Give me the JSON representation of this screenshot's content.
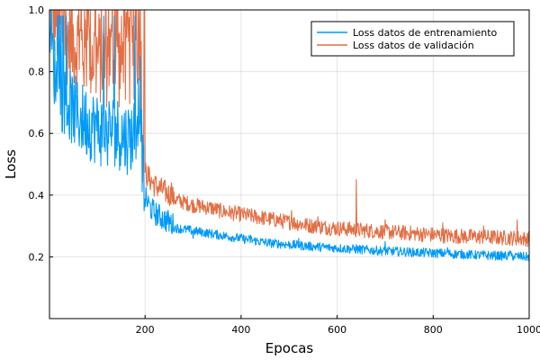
{
  "chart_data": {
    "type": "line",
    "title": "",
    "xlabel": "Epocas",
    "ylabel": "Loss",
    "xlim": [
      1,
      1000
    ],
    "ylim": [
      0.0,
      1.0
    ],
    "x_ticks": [
      200,
      400,
      600,
      800,
      1000
    ],
    "x_tick_labels": [
      "200",
      "400",
      "600",
      "800",
      "1000"
    ],
    "y_ticks": [
      0.2,
      0.4,
      0.6,
      0.8,
      1.0
    ],
    "y_tick_labels": [
      "0.2",
      "0.4",
      "0.6",
      "0.8",
      "1.0"
    ],
    "grid": true,
    "legend_position": "top-right",
    "series": [
      {
        "name": "Loss datos de entrenamiento",
        "color": "#009af9",
        "x": [
          1,
          10,
          20,
          30,
          40,
          50,
          60,
          70,
          80,
          90,
          100,
          110,
          120,
          130,
          140,
          150,
          160,
          170,
          180,
          190,
          195,
          200,
          210,
          220,
          230,
          240,
          250,
          260,
          280,
          300,
          320,
          340,
          360,
          380,
          400,
          420,
          440,
          460,
          480,
          500,
          520,
          540,
          560,
          580,
          600,
          620,
          640,
          660,
          680,
          700,
          720,
          740,
          760,
          780,
          800,
          820,
          840,
          860,
          880,
          900,
          920,
          940,
          960,
          980,
          1000
        ],
        "values": [
          0.95,
          0.78,
          0.7,
          0.68,
          0.66,
          0.64,
          0.62,
          0.61,
          0.6,
          0.59,
          0.58,
          0.57,
          0.56,
          0.58,
          0.57,
          0.56,
          0.55,
          0.55,
          0.58,
          0.7,
          0.44,
          0.38,
          0.35,
          0.33,
          0.32,
          0.31,
          0.3,
          0.29,
          0.285,
          0.28,
          0.275,
          0.27,
          0.265,
          0.26,
          0.255,
          0.25,
          0.245,
          0.24,
          0.238,
          0.235,
          0.233,
          0.23,
          0.228,
          0.226,
          0.224,
          0.222,
          0.22,
          0.218,
          0.216,
          0.214,
          0.213,
          0.212,
          0.21,
          0.209,
          0.208,
          0.207,
          0.205,
          0.204,
          0.202,
          0.201,
          0.2,
          0.199,
          0.198,
          0.197,
          0.195
        ],
        "spikes": [
          [
            300,
            0.26
          ],
          [
            420,
            0.27
          ],
          [
            520,
            0.26
          ],
          [
            640,
            0.24
          ],
          [
            700,
            0.25
          ],
          [
            830,
            0.23
          ],
          [
            960,
            0.22
          ]
        ]
      },
      {
        "name": "Loss datos de validación",
        "color": "#e26f46",
        "x": [
          1,
          10,
          20,
          30,
          40,
          50,
          60,
          70,
          80,
          90,
          100,
          110,
          120,
          130,
          140,
          150,
          160,
          170,
          180,
          190,
          195,
          200,
          210,
          220,
          230,
          240,
          250,
          260,
          280,
          300,
          320,
          340,
          360,
          380,
          400,
          420,
          440,
          460,
          480,
          500,
          520,
          540,
          560,
          580,
          600,
          620,
          640,
          660,
          680,
          700,
          720,
          740,
          760,
          780,
          800,
          820,
          840,
          860,
          880,
          900,
          920,
          940,
          960,
          980,
          1000
        ],
        "values": [
          1.0,
          0.95,
          0.9,
          0.88,
          0.86,
          0.85,
          0.84,
          0.83,
          0.82,
          0.81,
          0.8,
          0.8,
          0.79,
          0.8,
          0.79,
          0.78,
          0.79,
          0.8,
          0.82,
          0.88,
          0.55,
          0.46,
          0.44,
          0.42,
          0.41,
          0.4,
          0.39,
          0.38,
          0.37,
          0.36,
          0.355,
          0.35,
          0.34,
          0.335,
          0.33,
          0.325,
          0.32,
          0.315,
          0.31,
          0.305,
          0.3,
          0.295,
          0.29,
          0.288,
          0.285,
          0.283,
          0.28,
          0.278,
          0.276,
          0.274,
          0.272,
          0.27,
          0.268,
          0.266,
          0.264,
          0.262,
          0.26,
          0.259,
          0.258,
          0.257,
          0.256,
          0.255,
          0.254,
          0.253,
          0.25
        ],
        "spikes": [
          [
            255,
            0.44
          ],
          [
            505,
            0.35
          ],
          [
            560,
            0.33
          ],
          [
            640,
            0.45
          ],
          [
            700,
            0.32
          ],
          [
            820,
            0.31
          ],
          [
            905,
            0.3
          ],
          [
            975,
            0.32
          ]
        ]
      }
    ]
  }
}
